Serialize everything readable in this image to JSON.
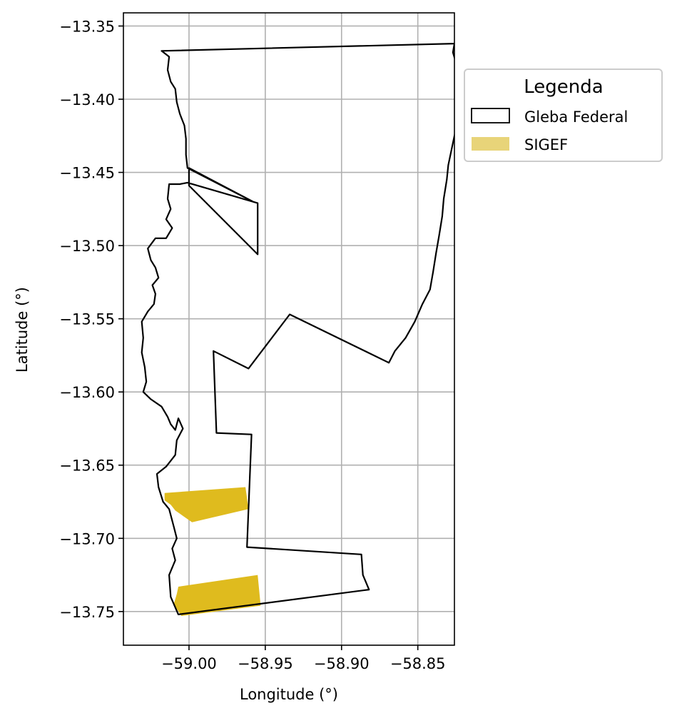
{
  "chart_data": {
    "type": "map",
    "xlabel": "Longitude (°)",
    "ylabel": "Latitude (°)",
    "xlim": [
      -59.043,
      -58.826
    ],
    "ylim": [
      -13.773,
      -13.341
    ],
    "xticks": [
      -59.0,
      -58.95,
      -58.9,
      -58.85
    ],
    "xtick_labels": [
      "−59.00",
      "−58.95",
      "−58.90",
      "−58.85"
    ],
    "yticks": [
      -13.35,
      -13.4,
      -13.45,
      -13.5,
      -13.55,
      -13.6,
      -13.65,
      -13.7,
      -13.75
    ],
    "ytick_labels": [
      "−13.35",
      "−13.40",
      "−13.45",
      "−13.50",
      "−13.55",
      "−13.60",
      "−13.65",
      "−13.70",
      "−13.75"
    ],
    "grid": true,
    "legend": {
      "title": "Legenda",
      "placement": "outside-right-top",
      "entries": [
        {
          "label": "Gleba Federal",
          "style": "outline",
          "color": "#000000"
        },
        {
          "label": "SIGEF",
          "style": "fill",
          "color": "#e8d479"
        }
      ]
    },
    "layers": [
      {
        "name": "Gleba Federal",
        "type": "polygon-outline",
        "color": "#000000",
        "coordinates": [
          [
            -59.018,
            -13.367
          ],
          [
            -58.826,
            -13.362
          ],
          [
            -58.827,
            -13.368
          ],
          [
            -58.825,
            -13.375
          ],
          [
            -58.824,
            -13.384
          ],
          [
            -58.822,
            -13.395
          ],
          [
            -58.822,
            -13.405
          ],
          [
            -58.824,
            -13.415
          ],
          [
            -58.826,
            -13.425
          ],
          [
            -58.828,
            -13.435
          ],
          [
            -58.83,
            -13.445
          ],
          [
            -58.831,
            -13.455
          ],
          [
            -58.833,
            -13.468
          ],
          [
            -58.834,
            -13.48
          ],
          [
            -58.836,
            -13.493
          ],
          [
            -58.838,
            -13.505
          ],
          [
            -58.84,
            -13.518
          ],
          [
            -58.842,
            -13.53
          ],
          [
            -58.847,
            -13.54
          ],
          [
            -58.852,
            -13.552
          ],
          [
            -58.858,
            -13.563
          ],
          [
            -58.865,
            -13.572
          ],
          [
            -58.869,
            -13.58
          ],
          [
            -58.934,
            -13.547
          ],
          [
            -58.961,
            -13.584
          ],
          [
            -58.984,
            -13.572
          ],
          [
            -58.982,
            -13.628
          ],
          [
            -58.959,
            -13.629
          ],
          [
            -58.962,
            -13.706
          ],
          [
            -58.887,
            -13.711
          ],
          [
            -58.886,
            -13.725
          ],
          [
            -58.882,
            -13.735
          ],
          [
            -59.007,
            -13.752
          ],
          [
            -59.012,
            -13.74
          ],
          [
            -59.013,
            -13.725
          ],
          [
            -59.009,
            -13.715
          ],
          [
            -59.011,
            -13.707
          ],
          [
            -59.008,
            -13.7
          ],
          [
            -59.01,
            -13.692
          ],
          [
            -59.013,
            -13.68
          ],
          [
            -59.017,
            -13.675
          ],
          [
            -59.02,
            -13.665
          ],
          [
            -59.021,
            -13.656
          ],
          [
            -59.015,
            -13.651
          ],
          [
            -59.009,
            -13.643
          ],
          [
            -59.008,
            -13.633
          ],
          [
            -59.004,
            -13.625
          ],
          [
            -59.007,
            -13.618
          ],
          [
            -59.009,
            -13.626
          ],
          [
            -59.012,
            -13.622
          ],
          [
            -59.014,
            -13.617
          ],
          [
            -59.018,
            -13.61
          ],
          [
            -59.025,
            -13.605
          ],
          [
            -59.03,
            -13.6
          ],
          [
            -59.028,
            -13.593
          ],
          [
            -59.029,
            -13.583
          ],
          [
            -59.031,
            -13.573
          ],
          [
            -59.03,
            -13.563
          ],
          [
            -59.031,
            -13.552
          ],
          [
            -59.027,
            -13.545
          ],
          [
            -59.023,
            -13.54
          ],
          [
            -59.022,
            -13.533
          ],
          [
            -59.024,
            -13.527
          ],
          [
            -59.02,
            -13.522
          ],
          [
            -59.022,
            -13.515
          ],
          [
            -59.025,
            -13.51
          ],
          [
            -59.027,
            -13.502
          ],
          [
            -59.022,
            -13.495
          ],
          [
            -59.015,
            -13.495
          ],
          [
            -59.011,
            -13.488
          ],
          [
            -59.015,
            -13.482
          ],
          [
            -59.012,
            -13.475
          ],
          [
            -59.014,
            -13.468
          ],
          [
            -59.013,
            -13.458
          ],
          [
            -59.006,
            -13.458
          ],
          [
            -59.001,
            -13.457
          ],
          [
            -58.955,
            -13.471
          ],
          [
            -58.955,
            -13.506
          ],
          [
            -59.0,
            -13.459
          ],
          [
            -59.0,
            -13.447
          ],
          [
            -58.958,
            -13.47
          ],
          [
            -59.001,
            -13.447
          ],
          [
            -59.002,
            -13.438
          ],
          [
            -59.002,
            -13.427
          ],
          [
            -59.003,
            -13.418
          ],
          [
            -59.006,
            -13.41
          ],
          [
            -59.008,
            -13.402
          ],
          [
            -59.009,
            -13.393
          ],
          [
            -59.012,
            -13.388
          ],
          [
            -59.014,
            -13.38
          ],
          [
            -59.013,
            -13.371
          ],
          [
            -59.018,
            -13.367
          ]
        ]
      },
      {
        "name": "SIGEF",
        "type": "polygon-fill",
        "color": "#dfbb1e",
        "polygons": [
          [
            [
              -59.016,
              -13.669
            ],
            [
              -58.963,
              -13.665
            ],
            [
              -58.961,
              -13.68
            ],
            [
              -58.998,
              -13.689
            ],
            [
              -59.009,
              -13.681
            ],
            [
              -59.012,
              -13.677
            ],
            [
              -59.016,
              -13.674
            ]
          ],
          [
            [
              -59.007,
              -13.733
            ],
            [
              -58.955,
              -13.725
            ],
            [
              -58.953,
              -13.746
            ],
            [
              -59.005,
              -13.753
            ],
            [
              -59.01,
              -13.745
            ],
            [
              -59.008,
              -13.738
            ]
          ]
        ]
      }
    ]
  }
}
